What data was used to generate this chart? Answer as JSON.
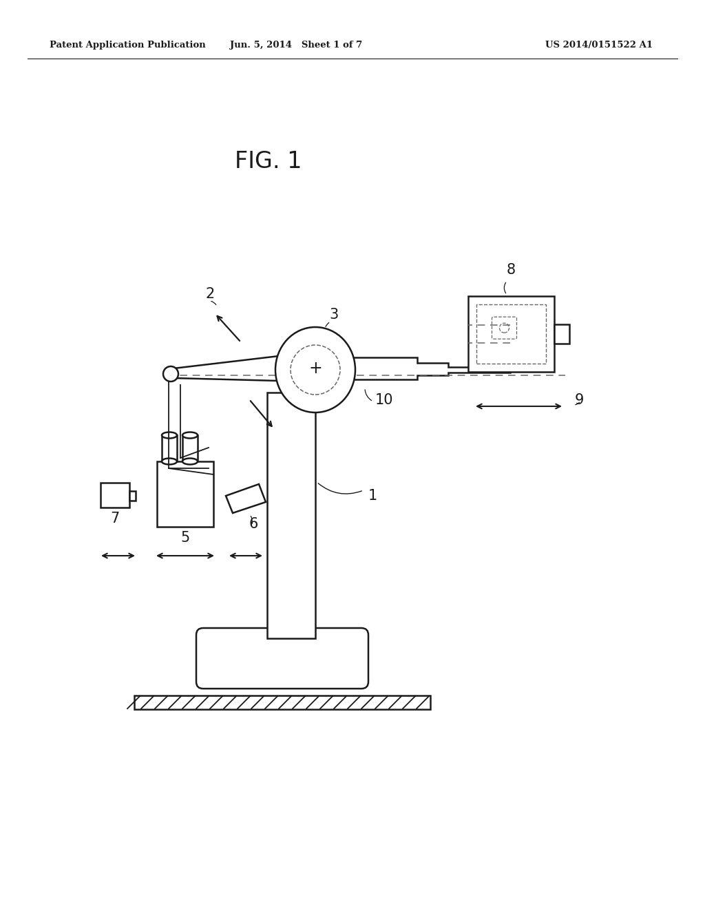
{
  "background_color": "#ffffff",
  "header_left": "Patent Application Publication",
  "header_mid": "Jun. 5, 2014   Sheet 1 of 7",
  "header_right": "US 2014/0151522 A1",
  "fig_label": "FIG. 1",
  "line_color": "#1a1a1a",
  "dashed_color": "#666666"
}
